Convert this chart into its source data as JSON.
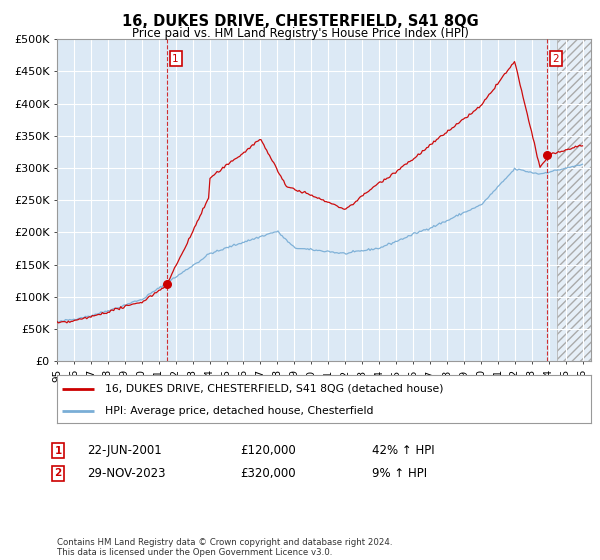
{
  "title": "16, DUKES DRIVE, CHESTERFIELD, S41 8QG",
  "subtitle": "Price paid vs. HM Land Registry's House Price Index (HPI)",
  "legend_line1": "16, DUKES DRIVE, CHESTERFIELD, S41 8QG (detached house)",
  "legend_line2": "HPI: Average price, detached house, Chesterfield",
  "annotation1_label": "1",
  "annotation1_date": "22-JUN-2001",
  "annotation1_price": "£120,000",
  "annotation1_hpi": "42% ↑ HPI",
  "annotation2_label": "2",
  "annotation2_date": "29-NOV-2023",
  "annotation2_price": "£320,000",
  "annotation2_hpi": "9% ↑ HPI",
  "footer": "Contains HM Land Registry data © Crown copyright and database right 2024.\nThis data is licensed under the Open Government Licence v3.0.",
  "red_color": "#cc0000",
  "blue_color": "#7aaed6",
  "annotation_color": "#cc0000",
  "grid_color": "#cccccc",
  "plot_bg_color": "#dce9f5",
  "background_color": "#ffffff",
  "ylim": [
    0,
    500000
  ],
  "yticks": [
    0,
    50000,
    100000,
    150000,
    200000,
    250000,
    300000,
    350000,
    400000,
    450000,
    500000
  ],
  "ytick_labels": [
    "£0",
    "£50K",
    "£100K",
    "£150K",
    "£200K",
    "£250K",
    "£300K",
    "£350K",
    "£400K",
    "£450K",
    "£500K"
  ],
  "year_start": 1995,
  "year_end": 2026
}
